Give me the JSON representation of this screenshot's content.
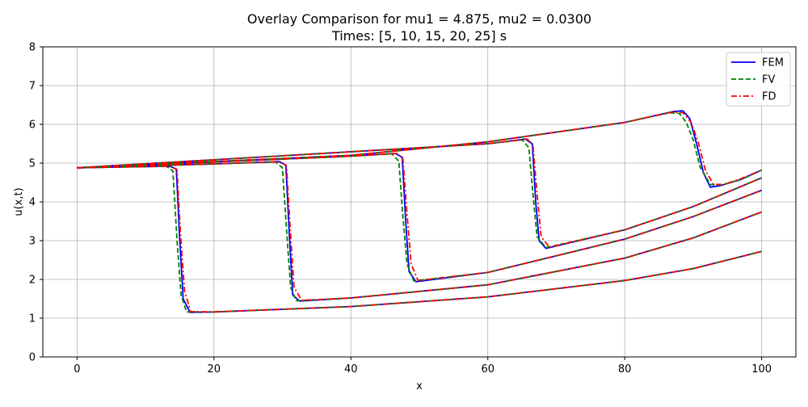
{
  "chart_data": {
    "type": "line",
    "title": "Overlay Comparison for mu1 = 4.875, mu2 = 0.0300",
    "subtitle": "Times: [5, 10, 15, 20, 25] s",
    "xlabel": "x",
    "ylabel": "u(x,t)",
    "xlim": [
      -5,
      105
    ],
    "ylim": [
      0,
      8
    ],
    "xticks": [
      "0",
      "20",
      "40",
      "60",
      "80",
      "100"
    ],
    "xtick_values": [
      0,
      20,
      40,
      60,
      80,
      100
    ],
    "yticks": [
      "0",
      "1",
      "2",
      "3",
      "4",
      "5",
      "6",
      "7",
      "8"
    ],
    "ytick_values": [
      0,
      1,
      2,
      3,
      4,
      5,
      6,
      7,
      8
    ],
    "grid": true,
    "legend_position": "top-right",
    "colors": {
      "FEM": "#0000ff",
      "FV": "#008000",
      "FD": "#ff0000"
    },
    "line_styles": {
      "FEM": "solid",
      "FV": "dashed",
      "FD": "dashdot"
    },
    "series": [
      {
        "name": "FEM",
        "curves": [
          {
            "time": 5,
            "x": [
              0,
              10,
              13.5,
              14.5,
              15.0,
              15.5,
              16.5,
              20,
              40,
              60,
              80,
              90,
              100
            ],
            "y": [
              4.88,
              4.91,
              4.92,
              4.85,
              3.0,
              1.5,
              1.15,
              1.16,
              1.3,
              1.55,
              1.97,
              2.28,
              2.72
            ]
          },
          {
            "time": 10,
            "x": [
              0,
              20,
              29.5,
              30.5,
              31.0,
              31.5,
              32.5,
              40,
              60,
              80,
              90,
              100
            ],
            "y": [
              4.88,
              4.98,
              5.04,
              4.95,
              3.2,
              1.6,
              1.44,
              1.52,
              1.86,
              2.55,
              3.07,
              3.74
            ]
          },
          {
            "time": 15,
            "x": [
              0,
              40,
              46.5,
              47.5,
              48.0,
              48.5,
              49.5,
              60,
              80,
              90,
              100
            ],
            "y": [
              4.88,
              5.18,
              5.25,
              5.15,
              3.5,
              2.2,
              1.94,
              2.18,
              3.04,
              3.62,
              4.3
            ]
          },
          {
            "time": 20,
            "x": [
              0,
              60,
              65.5,
              66.5,
              67.0,
              67.5,
              68.5,
              80,
              90,
              100
            ],
            "y": [
              4.88,
              5.5,
              5.62,
              5.5,
              4.0,
              3.0,
              2.8,
              3.28,
              3.88,
              4.62
            ]
          },
          {
            "time": 25,
            "x": [
              0,
              40,
              60,
              80,
              87,
              88.5,
              89.5,
              90.5,
              91.5,
              92.5,
              94,
              97,
              100
            ],
            "y": [
              4.88,
              5.2,
              5.55,
              6.05,
              6.33,
              6.35,
              6.15,
              5.5,
              4.75,
              4.38,
              4.42,
              4.58,
              4.82
            ]
          }
        ]
      },
      {
        "name": "FV",
        "curves": [
          {
            "time": 5,
            "x": [
              0,
              10,
              13.0,
              14.0,
              14.6,
              15.2,
              16.0,
              20,
              40,
              60,
              80,
              90,
              100
            ],
            "y": [
              4.88,
              4.91,
              4.92,
              4.8,
              3.0,
              1.6,
              1.16,
              1.16,
              1.3,
              1.55,
              1.97,
              2.28,
              2.72
            ]
          },
          {
            "time": 10,
            "x": [
              0,
              20,
              29.0,
              30.0,
              30.6,
              31.2,
              32.0,
              40,
              60,
              80,
              90,
              100
            ],
            "y": [
              4.88,
              4.98,
              5.03,
              4.88,
              3.3,
              1.8,
              1.45,
              1.52,
              1.86,
              2.55,
              3.07,
              3.74
            ]
          },
          {
            "time": 15,
            "x": [
              0,
              40,
              46.0,
              47.0,
              47.6,
              48.2,
              49.2,
              60,
              80,
              90,
              100
            ],
            "y": [
              4.88,
              5.18,
              5.24,
              5.05,
              3.6,
              2.4,
              1.96,
              2.18,
              3.04,
              3.62,
              4.3
            ]
          },
          {
            "time": 20,
            "x": [
              0,
              60,
              65.0,
              66.0,
              66.6,
              67.2,
              68.5,
              80,
              90,
              100
            ],
            "y": [
              4.88,
              5.5,
              5.6,
              5.4,
              4.2,
              3.1,
              2.82,
              3.28,
              3.88,
              4.62
            ]
          },
          {
            "time": 25,
            "x": [
              0,
              40,
              60,
              80,
              86.5,
              88,
              89,
              90,
              91,
              92.5,
              94,
              97,
              100
            ],
            "y": [
              4.88,
              5.2,
              5.55,
              6.05,
              6.3,
              6.28,
              6.05,
              5.6,
              4.9,
              4.45,
              4.43,
              4.58,
              4.82
            ]
          }
        ]
      },
      {
        "name": "FD",
        "curves": [
          {
            "time": 5,
            "x": [
              0,
              10,
              13.8,
              14.6,
              15.1,
              15.7,
              16.6,
              20,
              40,
              60,
              80,
              90,
              100
            ],
            "y": [
              4.88,
              4.91,
              4.92,
              4.82,
              3.2,
              1.7,
              1.17,
              1.16,
              1.3,
              1.55,
              1.97,
              2.28,
              2.72
            ]
          },
          {
            "time": 10,
            "x": [
              0,
              20,
              29.8,
              30.6,
              31.1,
              31.7,
              32.8,
              40,
              60,
              80,
              90,
              100
            ],
            "y": [
              4.88,
              4.98,
              5.04,
              4.92,
              3.4,
              1.8,
              1.46,
              1.52,
              1.86,
              2.55,
              3.07,
              3.74
            ]
          },
          {
            "time": 15,
            "x": [
              0,
              40,
              46.8,
              47.6,
              48.2,
              48.8,
              49.8,
              60,
              80,
              90,
              100
            ],
            "y": [
              4.88,
              5.18,
              5.25,
              5.1,
              3.7,
              2.4,
              1.97,
              2.18,
              3.04,
              3.62,
              4.3
            ]
          },
          {
            "time": 20,
            "x": [
              0,
              60,
              65.8,
              66.6,
              67.2,
              67.8,
              69.0,
              80,
              90,
              100
            ],
            "y": [
              4.88,
              5.5,
              5.62,
              5.45,
              4.2,
              3.1,
              2.83,
              3.28,
              3.88,
              4.62
            ]
          },
          {
            "time": 25,
            "x": [
              0,
              40,
              60,
              80,
              87,
              88.5,
              89.7,
              90.8,
              91.8,
              93,
              94.5,
              97,
              100
            ],
            "y": [
              4.88,
              5.2,
              5.55,
              6.05,
              6.32,
              6.3,
              6.05,
              5.5,
              4.8,
              4.45,
              4.45,
              4.6,
              4.82
            ]
          }
        ]
      }
    ]
  }
}
